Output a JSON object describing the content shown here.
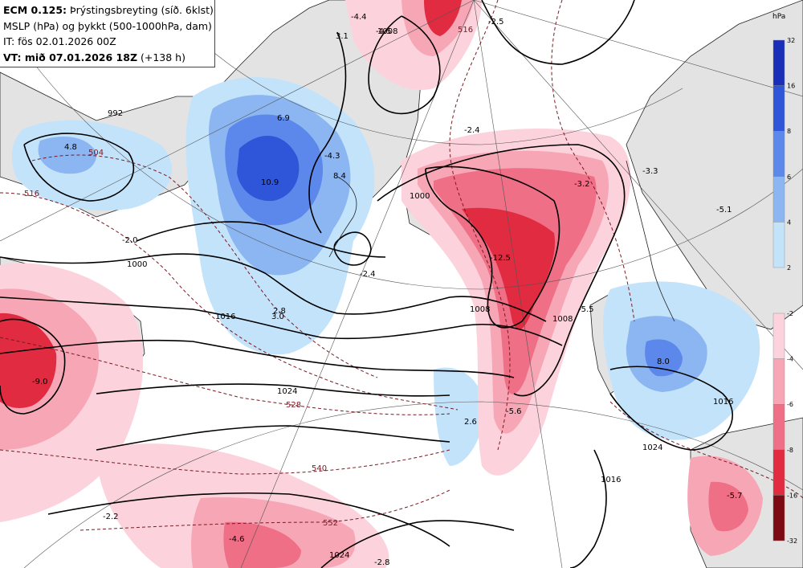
{
  "header": {
    "model": "ECM 0.125:",
    "title": "Þrýstingsbreyting (síð. 6klst)",
    "line2": "MSLP (hPa) og þykkt (500-1000hPa, dam)",
    "init_time": "IT: fös 02.01.2026 00Z",
    "valid_prefix": "VT: mið 07.01.2026 18Z",
    "valid_suffix": "(+138 h)"
  },
  "legend": {
    "unit": "hPa",
    "positive": [
      {
        "label": "32",
        "color": "#1a2fb8"
      },
      {
        "label": "16",
        "color": "#2f55d8"
      },
      {
        "label": "8",
        "color": "#5b88ea"
      },
      {
        "label": "6",
        "color": "#8cb6f2"
      },
      {
        "label": "4",
        "color": "#c3e3fb"
      },
      {
        "label": "2",
        "color": "#ffffff"
      }
    ],
    "negative": [
      {
        "label": "-2",
        "color": "#fcd3dc"
      },
      {
        "label": "-4",
        "color": "#f7a6b6"
      },
      {
        "label": "-6",
        "color": "#ee6f86"
      },
      {
        "label": "-8",
        "color": "#e02b40"
      },
      {
        "label": "-16",
        "color": "#b0171f"
      },
      {
        "label": "-32",
        "color": "#7d0a12"
      }
    ]
  },
  "isobar_labels": [
    "1000",
    "1000",
    "1008",
    "1016",
    "1016",
    "1024",
    "1024",
    "1016",
    "1008",
    "992",
    "1008",
    "1024"
  ],
  "thickness_labels": [
    "504",
    "516",
    "528",
    "540",
    "552",
    "516"
  ],
  "change_labels": [
    "-4.4",
    "-2.5",
    "-4.5",
    "3.1",
    "6.9",
    "-4.3",
    "8.4",
    "10.9",
    "-2.0",
    "-2.4",
    "2.8",
    "3.0",
    "-2.4",
    "-12.5",
    "-3.2",
    "-5.5",
    "-3.3",
    "-5.6",
    "2.6",
    "8.0",
    "-9.0",
    "-2.2",
    "-4.6",
    "-2.8",
    "-5.7",
    "-5.1",
    "4.8"
  ],
  "colors": {
    "land": "#e3e3e3",
    "isobar": "#000000",
    "thickness": "#7a1a22",
    "coast": "#222222"
  }
}
